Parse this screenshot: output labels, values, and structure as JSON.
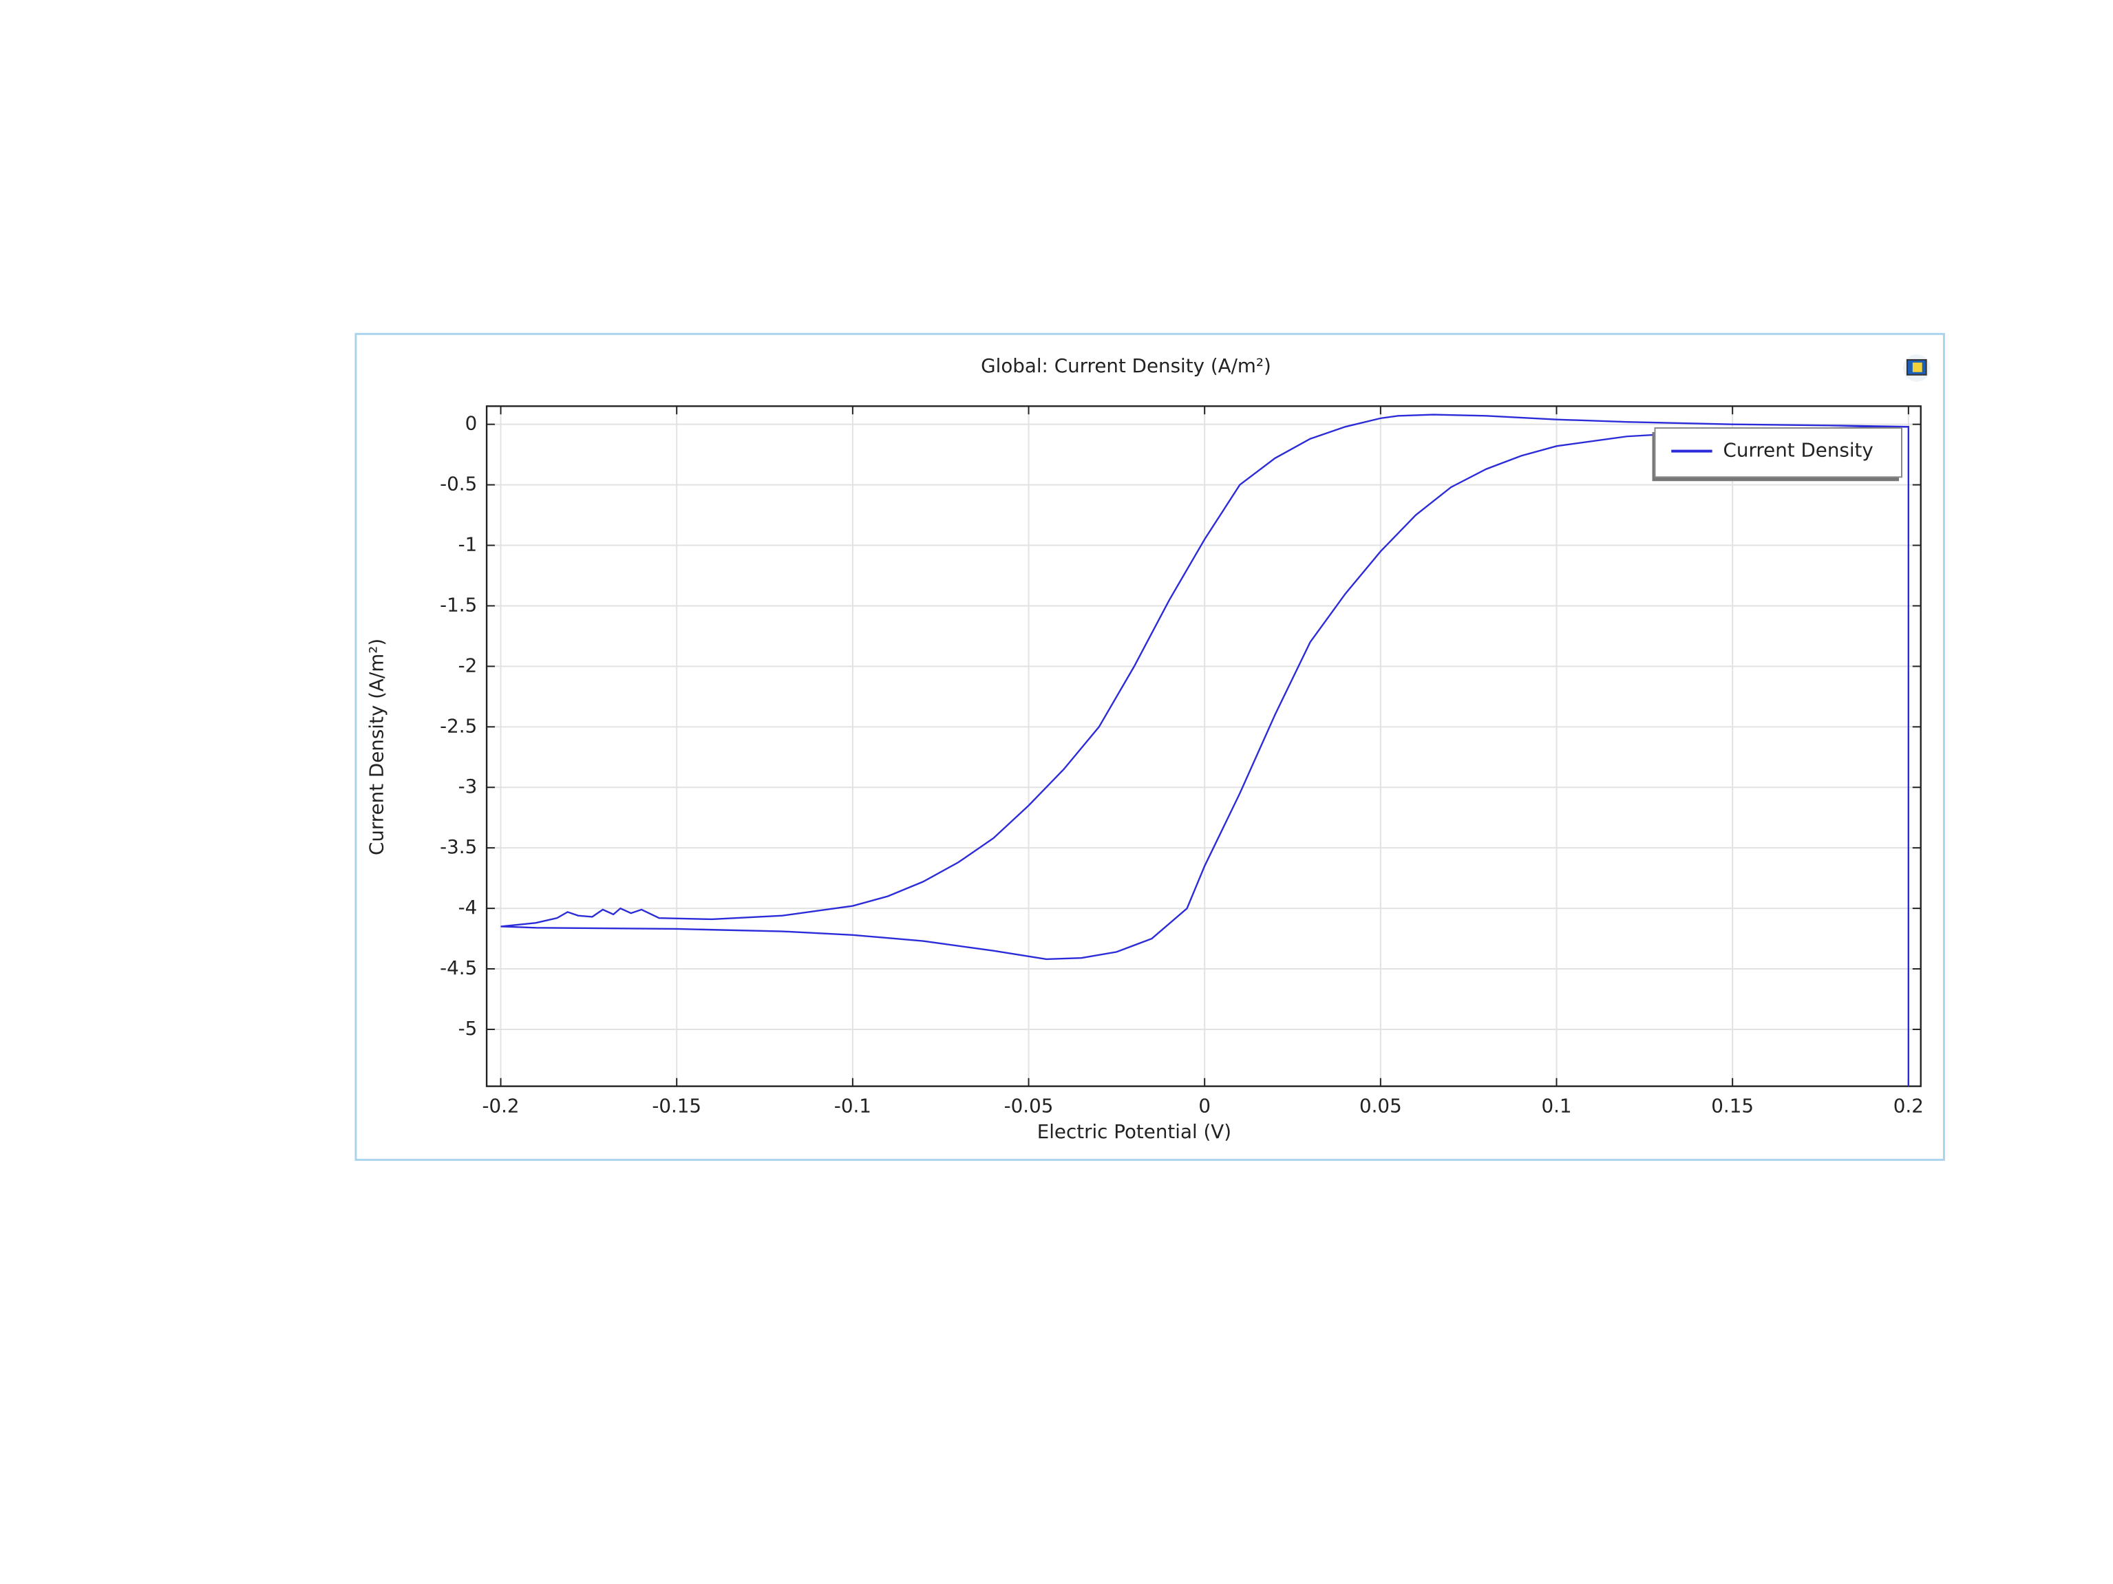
{
  "chart_data": {
    "type": "line",
    "title": "Global: Current Density (A/m²)",
    "x_label": "Electric Potential (V)",
    "y_label": "Current Density (A/m²)",
    "x": [
      0.2,
      0.2,
      0.18,
      0.15,
      0.12,
      0.1,
      0.08,
      0.065,
      0.055,
      0.05,
      0.04,
      0.03,
      0.02,
      0.01,
      0,
      -0.01,
      -0.02,
      -0.03,
      -0.04,
      -0.05,
      -0.06,
      -0.07,
      -0.08,
      -0.09,
      -0.1,
      -0.12,
      -0.14,
      -0.155,
      -0.16,
      -0.163,
      -0.166,
      -0.168,
      -0.171,
      -0.174,
      -0.178,
      -0.181,
      -0.184,
      -0.19,
      -0.2,
      -0.19,
      -0.15,
      -0.12,
      -0.1,
      -0.08,
      -0.06,
      -0.045,
      -0.035,
      -0.025,
      -0.015,
      -0.005,
      0,
      0.01,
      0.02,
      0.03,
      0.04,
      0.05,
      0.06,
      0.07,
      0.08,
      0.09,
      0.1,
      0.12,
      0.15,
      0.18,
      0.2
    ],
    "series": [
      {
        "name": "Current Density",
        "color": "#2b2bd9",
        "values": [
          -5.47,
          -0.02,
          -0.01,
          0.0,
          0.02,
          0.04,
          0.07,
          0.08,
          0.07,
          0.05,
          -0.02,
          -0.12,
          -0.28,
          -0.5,
          -0.95,
          -1.45,
          -2.0,
          -2.5,
          -2.85,
          -3.15,
          -3.42,
          -3.62,
          -3.78,
          -3.9,
          -3.98,
          -4.06,
          -4.09,
          -4.08,
          -4.01,
          -4.04,
          -4.0,
          -4.05,
          -4.01,
          -4.07,
          -4.06,
          -4.03,
          -4.08,
          -4.12,
          -4.15,
          -4.16,
          -4.17,
          -4.19,
          -4.22,
          -4.27,
          -4.35,
          -4.42,
          -4.41,
          -4.36,
          -4.25,
          -4.0,
          -3.65,
          -3.05,
          -2.4,
          -1.8,
          -1.4,
          -1.05,
          -0.75,
          -0.52,
          -0.37,
          -0.26,
          -0.18,
          -0.1,
          -0.05,
          -0.03,
          -0.02
        ]
      }
    ],
    "xlim": [
      -0.204,
      0.2035
    ],
    "xticks": [
      -0.2,
      -0.15,
      -0.1,
      -0.05,
      0,
      0.05,
      0.1,
      0.15,
      0.2
    ],
    "ylim": [
      -5.47,
      0.15
    ],
    "yticks": [
      0,
      -0.5,
      -1,
      -1.5,
      -2,
      -2.5,
      -3,
      -3.5,
      -4,
      -4.5,
      -5
    ],
    "grid": true,
    "legend": "upper right"
  }
}
